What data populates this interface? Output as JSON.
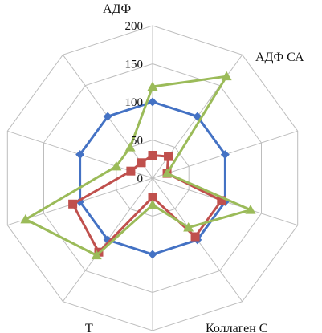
{
  "chart_data": {
    "type": "radar",
    "title": "",
    "axes": [
      "АДФ",
      "АДФ СА",
      "",
      "",
      "Коллаген С",
      "",
      "Т",
      "",
      "",
      ""
    ],
    "rlim": [
      0,
      200
    ],
    "ticks": [
      0,
      50,
      100,
      150,
      200
    ],
    "tick_labels": [
      "0",
      "50",
      "100",
      "150",
      "200"
    ],
    "grid": true,
    "legend": "none",
    "series": [
      {
        "color": "#4472C4",
        "marker": "diamond",
        "values": [
          100,
          100,
          100,
          100,
          100,
          100,
          100,
          100,
          100,
          100
        ]
      },
      {
        "color": "#C0504D",
        "marker": "square",
        "values": [
          30,
          35,
          20,
          95,
          95,
          25,
          120,
          110,
          30,
          25
        ]
      },
      {
        "color": "#9BBB59",
        "marker": "triangle",
        "values": [
          120,
          165,
          20,
          135,
          80,
          35,
          125,
          175,
          50,
          50
        ]
      }
    ]
  }
}
